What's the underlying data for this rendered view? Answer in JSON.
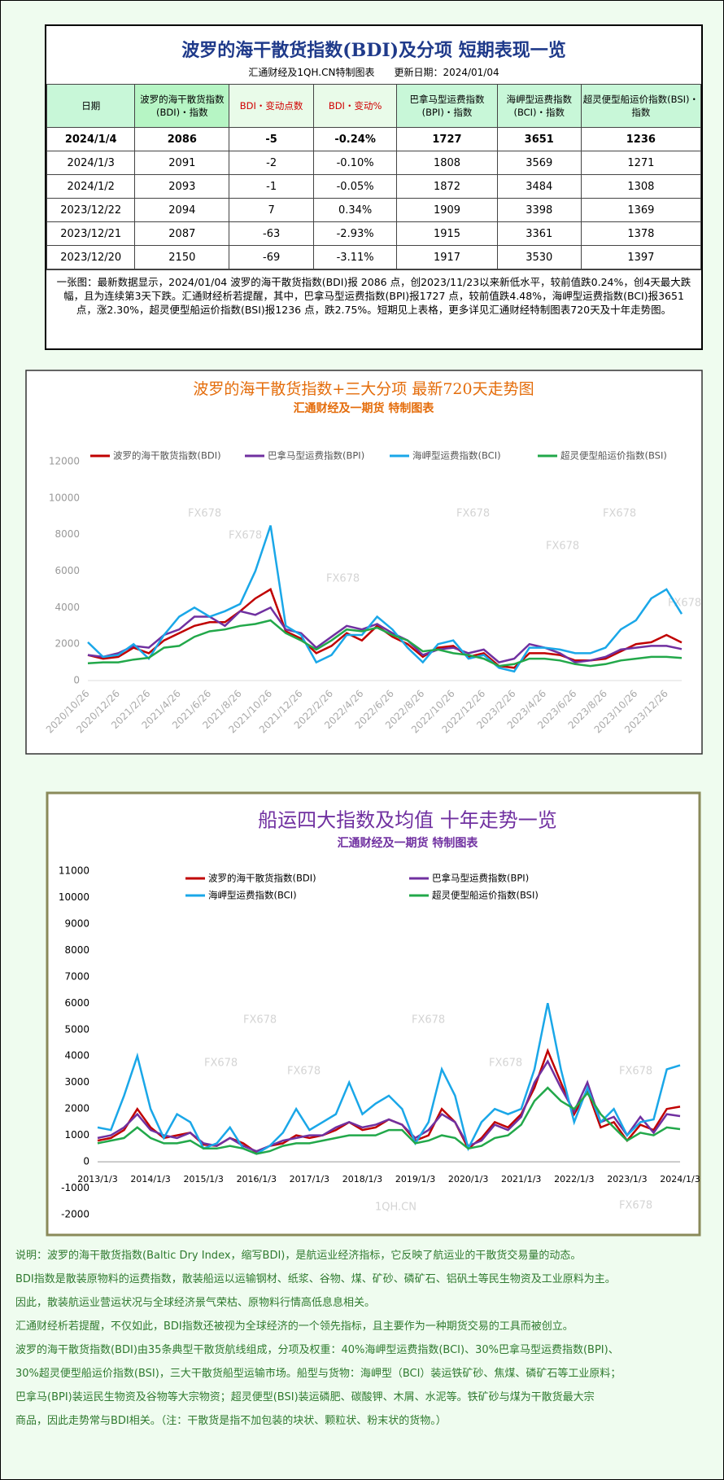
{
  "header": {
    "title": "波罗的海干散货指数(BDI)及分项 短期表现一览",
    "subtitle": "汇通财经及1QH.CN特制图表　　更新日期：2024/01/04"
  },
  "table": {
    "columns": [
      "日期",
      "波罗的海干散货指数(BDI)・指数",
      "BDI・变动点数",
      "BDI・变动%",
      "巴拿马型运费指数(BPI)・指数",
      "海岬型运费指数(BCI)・指数",
      "超灵便型船运价指数(BSI)・指数"
    ],
    "rows": [
      [
        "2024/1/4",
        "2086",
        "-5",
        "-0.24%",
        "1727",
        "3651",
        "1236"
      ],
      [
        "2024/1/3",
        "2091",
        "-2",
        "-0.10%",
        "1808",
        "3569",
        "1271"
      ],
      [
        "2024/1/2",
        "2093",
        "-1",
        "-0.05%",
        "1872",
        "3484",
        "1308"
      ],
      [
        "2023/12/22",
        "2094",
        "7",
        "0.34%",
        "1909",
        "3398",
        "1369"
      ],
      [
        "2023/12/21",
        "2087",
        "-63",
        "-2.93%",
        "1915",
        "3361",
        "1378"
      ],
      [
        "2023/12/20",
        "2150",
        "-69",
        "-3.11%",
        "1917",
        "3530",
        "1397"
      ]
    ]
  },
  "note": "一张图：最新数据显示，2024/01/04 波罗的海干散货指数(BDI)报 2086 点，创2023/11/23以来新低水平，较前值跌0.24%，创4天最大跌幅，且为连续第3天下跌。汇通财经析若提醒，其中，巴拿马型运费指数(BPI)报1727 点，较前值跌4.48%，海岬型运费指数(BCI)报3651 点，涨2.30%，超灵便型船运价指数(BSI)报1236 点，跌2.75%。短期见上表格，更多详见汇通财经特制图表720天及十年走势图。",
  "chart_data": [
    {
      "type": "line",
      "title": "波罗的海干散货指数+三大分项  最新720天走势图",
      "subtitle": "汇通财经及一期货  特制图表",
      "legend": "top",
      "categories": [
        "2020/10/26",
        null,
        "2020/12/26",
        null,
        "2021/2/26",
        null,
        "2021/4/26",
        null,
        "2021/6/26",
        null,
        "2021/8/26",
        null,
        "2021/10/26",
        null,
        "2021/12/26",
        null,
        "2022/2/26",
        null,
        "2022/4/26",
        null,
        "2022/6/26",
        null,
        "2022/8/26",
        null,
        "2022/10/26",
        null,
        "2022/12/26",
        null,
        "2023/2/26",
        null,
        "2023/4/26",
        null,
        "2023/6/26",
        null,
        "2023/8/26",
        null,
        "2023/10/26",
        null,
        "2023/12/26",
        null
      ],
      "series": [
        {
          "name": "波罗的海干散货指数(BDI)",
          "color": "#c00000",
          "values": [
            1400,
            1200,
            1300,
            1800,
            1500,
            2200,
            2600,
            3000,
            3200,
            3200,
            3800,
            4500,
            5000,
            2700,
            2300,
            1500,
            1900,
            2600,
            2200,
            3000,
            2400,
            2000,
            1300,
            1800,
            1900,
            1300,
            1500,
            800,
            700,
            1500,
            1500,
            1400,
            1100,
            1100,
            1200,
            1600,
            2000,
            2100,
            2500,
            2086
          ]
        },
        {
          "name": "巴拿马型运费指数(BPI)",
          "color": "#7030a0",
          "values": [
            1400,
            1300,
            1500,
            1900,
            1800,
            2500,
            2800,
            3500,
            3500,
            3000,
            3800,
            3600,
            4000,
            2800,
            2600,
            1800,
            2400,
            3000,
            2800,
            3100,
            2600,
            2200,
            1400,
            1700,
            1800,
            1500,
            1700,
            1000,
            1200,
            2000,
            1800,
            1500,
            1000,
            1100,
            1300,
            1700,
            1800,
            1900,
            1900,
            1727
          ]
        },
        {
          "name": "海岬型运费指数(BCI)",
          "color": "#1aa7e8",
          "values": [
            2100,
            1300,
            1400,
            2000,
            1200,
            2500,
            3500,
            4000,
            3500,
            3800,
            4200,
            6000,
            8500,
            3000,
            2500,
            1000,
            1400,
            2500,
            2500,
            3500,
            2800,
            1800,
            1000,
            2000,
            2200,
            1200,
            1400,
            700,
            500,
            1800,
            1800,
            1700,
            1500,
            1500,
            1800,
            2800,
            3300,
            4500,
            5000,
            3651
          ]
        },
        {
          "name": "超灵便型船运价指数(BSI)",
          "color": "#22a84a",
          "values": [
            950,
            1000,
            1000,
            1150,
            1250,
            1800,
            1900,
            2400,
            2700,
            2800,
            3000,
            3100,
            3300,
            2600,
            2200,
            1700,
            2200,
            2800,
            2700,
            2900,
            2500,
            2200,
            1600,
            1700,
            1500,
            1400,
            1200,
            800,
            900,
            1200,
            1200,
            1100,
            900,
            800,
            900,
            1100,
            1200,
            1300,
            1300,
            1236
          ]
        }
      ],
      "ylim": [
        0,
        12000
      ],
      "yticks": [
        0,
        2000,
        4000,
        6000,
        8000,
        10000,
        12000
      ],
      "grid": false,
      "watermarks": [
        "FX678",
        "FX678",
        "FX678",
        "FX678",
        "FX678",
        "FX678",
        "FX678"
      ]
    },
    {
      "type": "line",
      "title": "船运四大指数及均值 十年走势一览",
      "subtitle": "汇通财经及一期货 特制图表",
      "legend": "top",
      "categories": [
        "2013/1/3",
        null,
        null,
        null,
        "2014/1/3",
        null,
        null,
        null,
        "2015/1/3",
        null,
        null,
        null,
        "2016/1/3",
        null,
        null,
        null,
        "2017/1/3",
        null,
        null,
        null,
        "2018/1/3",
        null,
        null,
        null,
        "2019/1/3",
        null,
        null,
        null,
        "2020/1/3",
        null,
        null,
        null,
        "2021/1/3",
        null,
        null,
        null,
        "2022/1/3",
        null,
        null,
        null,
        "2023/1/3",
        null,
        null,
        null,
        "2024/1/3"
      ],
      "series": [
        {
          "name": "波罗的海干散货指数(BDI)",
          "color": "#c00000",
          "values": [
            800,
            900,
            1200,
            2000,
            1300,
            900,
            1000,
            1100,
            650,
            600,
            900,
            700,
            350,
            600,
            700,
            1000,
            900,
            1000,
            1200,
            1500,
            1200,
            1300,
            1600,
            1400,
            800,
            1000,
            2000,
            1500,
            500,
            900,
            1500,
            1300,
            1800,
            2800,
            4200,
            3000,
            1800,
            2700,
            1300,
            1500,
            800,
            1400,
            1200,
            2000,
            2086
          ]
        },
        {
          "name": "巴拿马型运费指数(BPI)",
          "color": "#7030a0",
          "values": [
            900,
            1000,
            1300,
            1800,
            1200,
            1000,
            900,
            1100,
            700,
            600,
            900,
            600,
            400,
            600,
            800,
            900,
            1000,
            1000,
            1300,
            1500,
            1300,
            1400,
            1600,
            1400,
            900,
            1200,
            1800,
            1500,
            600,
            800,
            1400,
            1200,
            1700,
            3000,
            3800,
            2800,
            1900,
            3000,
            1500,
            1700,
            1000,
            1700,
            1100,
            1800,
            1727
          ]
        },
        {
          "name": "海岬型运费指数(BCI)",
          "color": "#1aa7e8",
          "values": [
            1300,
            1200,
            2500,
            4000,
            2000,
            900,
            1800,
            1500,
            500,
            700,
            1300,
            500,
            300,
            600,
            1100,
            2000,
            1200,
            1500,
            1800,
            3000,
            1800,
            2200,
            2500,
            2000,
            700,
            1500,
            3500,
            2500,
            500,
            1500,
            2000,
            1800,
            2000,
            3500,
            6000,
            3500,
            1500,
            2800,
            1500,
            2000,
            1000,
            1500,
            1600,
            3500,
            3651
          ]
        },
        {
          "name": "超灵便型船运价指数(BSI)",
          "color": "#22a84a",
          "values": [
            700,
            800,
            900,
            1300,
            900,
            700,
            700,
            800,
            500,
            500,
            600,
            500,
            300,
            400,
            600,
            700,
            700,
            800,
            900,
            1000,
            1000,
            1000,
            1200,
            1200,
            700,
            800,
            1000,
            900,
            500,
            600,
            900,
            1000,
            1400,
            2300,
            2800,
            2300,
            2000,
            2600,
            1800,
            1300,
            800,
            1100,
            1000,
            1300,
            1236
          ]
        }
      ],
      "ylim": [
        -2000,
        11000
      ],
      "yticks": [
        -2000,
        -1000,
        0,
        1000,
        2000,
        3000,
        4000,
        5000,
        6000,
        7000,
        8000,
        9000,
        10000,
        11000
      ],
      "grid": false,
      "watermarks": [
        "FX678",
        "FX678",
        "FX678",
        "FX678",
        "FX678",
        "FX678",
        "FX678",
        "1QH.CN"
      ]
    }
  ],
  "description": [
    "说明：波罗的海干散货指数(Baltic Dry Index，缩写BDI)，是航运业经济指标，它反映了航运业的干散货交易量的动态。",
    "BDI指数是散装原物料的运费指数，散装船运以运输钢材、纸浆、谷物、煤、矿砂、磷矿石、铝矾土等民生物资及工业原料为主。",
    "因此，散装航运业营运状况与全球经济景气荣枯、原物料行情高低息息相关。",
    "汇通财经析若提醒，不仅如此，BDI指数还被视为全球经济的一个领先指标，且主要作为一种期货交易的工具而被创立。",
    "波罗的海干散货指数(BDI)由35条典型干散货航线组成，分项及权重：40%海岬型运费指数(BCI)、30%巴拿马型运费指数(BPI)、",
    "30%超灵便型船运价指数(BSI)，三大干散货船型运输市场。船型与货物：海岬型（BCI）装运铁矿砂、焦煤、磷矿石等工业原料；",
    "巴拿马(BPI)装运民生物资及谷物等大宗物资；超灵便型(BSI)装运磷肥、碳酸钾、木屑、水泥等。铁矿砂与煤为干散货最大宗",
    "商品，因此走势常与BDI相关。（注：干散货是指不加包装的块状、颗粒状、粉末状的货物。）"
  ]
}
